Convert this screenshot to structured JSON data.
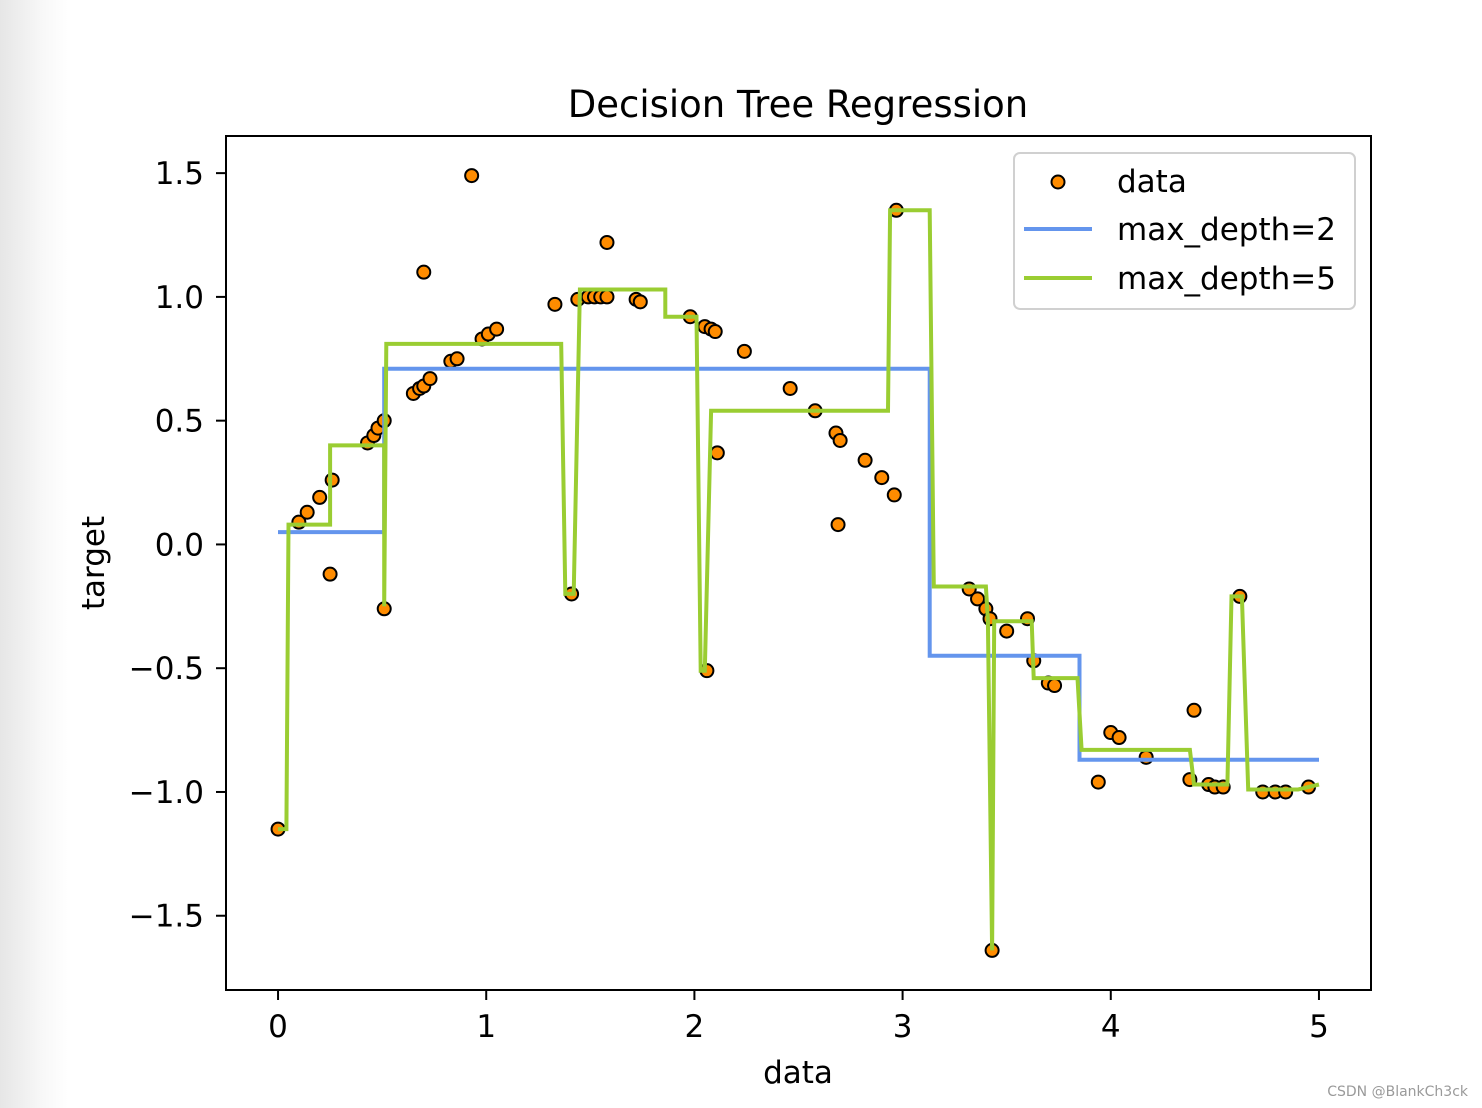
{
  "watermark": "CSDN @BlankCh3ck",
  "chart_data": {
    "type": "scatter",
    "title": "Decision Tree Regression",
    "xlabel": "data",
    "ylabel": "target",
    "xlim": [
      -0.25,
      5.25
    ],
    "ylim": [
      -1.8,
      1.65
    ],
    "xticks": [
      0,
      1,
      2,
      3,
      4,
      5
    ],
    "xtick_labels": [
      "0",
      "1",
      "2",
      "3",
      "4",
      "5"
    ],
    "yticks": [
      1.5,
      1.0,
      0.5,
      0.0,
      -0.5,
      -1.0,
      -1.5
    ],
    "ytick_labels": [
      "1.5",
      "1.0",
      "0.5",
      "0.0",
      "−0.5",
      "−1.0",
      "−1.5"
    ],
    "grid": false,
    "legend_position": "top-right",
    "legend": [
      {
        "label": "data",
        "kind": "marker",
        "color": "#ff8c00"
      },
      {
        "label": "max_depth=2",
        "kind": "line",
        "color": "#6495ed"
      },
      {
        "label": "max_depth=5",
        "kind": "line",
        "color": "#9acd32"
      }
    ],
    "scatter": {
      "name": "data",
      "color": "#ff8c00",
      "edgecolor": "#000000",
      "points": [
        [
          0.0,
          -1.15
        ],
        [
          0.1,
          0.09
        ],
        [
          0.14,
          0.13
        ],
        [
          0.2,
          0.19
        ],
        [
          0.25,
          -0.12
        ],
        [
          0.26,
          0.26
        ],
        [
          0.43,
          0.41
        ],
        [
          0.46,
          0.44
        ],
        [
          0.48,
          0.47
        ],
        [
          0.51,
          0.5
        ],
        [
          0.51,
          -0.26
        ],
        [
          0.65,
          0.61
        ],
        [
          0.68,
          0.63
        ],
        [
          0.7,
          0.64
        ],
        [
          0.7,
          1.1
        ],
        [
          0.73,
          0.67
        ],
        [
          0.83,
          0.74
        ],
        [
          0.86,
          0.75
        ],
        [
          0.93,
          1.49
        ],
        [
          0.98,
          0.83
        ],
        [
          1.01,
          0.85
        ],
        [
          1.05,
          0.87
        ],
        [
          1.33,
          0.97
        ],
        [
          1.41,
          -0.2
        ],
        [
          1.44,
          0.99
        ],
        [
          1.49,
          1.0
        ],
        [
          1.52,
          1.0
        ],
        [
          1.55,
          1.0
        ],
        [
          1.58,
          1.0
        ],
        [
          1.58,
          1.22
        ],
        [
          1.72,
          0.99
        ],
        [
          1.74,
          0.98
        ],
        [
          1.98,
          0.92
        ],
        [
          2.05,
          0.88
        ],
        [
          2.06,
          -0.51
        ],
        [
          2.08,
          0.87
        ],
        [
          2.1,
          0.86
        ],
        [
          2.11,
          0.37
        ],
        [
          2.24,
          0.78
        ],
        [
          2.46,
          0.63
        ],
        [
          2.58,
          0.54
        ],
        [
          2.68,
          0.45
        ],
        [
          2.7,
          0.42
        ],
        [
          2.69,
          0.08
        ],
        [
          2.82,
          0.34
        ],
        [
          2.9,
          0.27
        ],
        [
          2.96,
          0.2
        ],
        [
          2.97,
          1.35
        ],
        [
          3.32,
          -0.18
        ],
        [
          3.36,
          -0.22
        ],
        [
          3.4,
          -0.26
        ],
        [
          3.42,
          -0.3
        ],
        [
          3.43,
          -1.64
        ],
        [
          3.5,
          -0.35
        ],
        [
          3.6,
          -0.3
        ],
        [
          3.63,
          -0.47
        ],
        [
          3.7,
          -0.56
        ],
        [
          3.73,
          -0.57
        ],
        [
          3.94,
          -0.96
        ],
        [
          4.0,
          -0.76
        ],
        [
          4.04,
          -0.78
        ],
        [
          4.17,
          -0.86
        ],
        [
          4.38,
          -0.95
        ],
        [
          4.4,
          -0.67
        ],
        [
          4.47,
          -0.97
        ],
        [
          4.5,
          -0.98
        ],
        [
          4.54,
          -0.98
        ],
        [
          4.62,
          -0.21
        ],
        [
          4.73,
          -1.0
        ],
        [
          4.79,
          -1.0
        ],
        [
          4.84,
          -1.0
        ],
        [
          4.95,
          -0.98
        ]
      ]
    },
    "series": [
      {
        "name": "max_depth=2",
        "color": "#6495ed",
        "x": [
          0.0,
          0.51,
          0.51,
          3.13,
          3.13,
          3.85,
          3.85,
          5.0
        ],
        "y": [
          0.05,
          0.05,
          0.71,
          0.71,
          -0.45,
          -0.45,
          -0.87,
          -0.87
        ]
      },
      {
        "name": "max_depth=5",
        "color": "#9acd32",
        "x": [
          0.0,
          0.04,
          0.05,
          0.25,
          0.25,
          0.51,
          0.51,
          0.52,
          0.52,
          1.36,
          1.38,
          1.42,
          1.45,
          1.86,
          1.86,
          2.01,
          2.03,
          2.05,
          2.08,
          2.93,
          2.94,
          3.13,
          3.15,
          3.4,
          3.41,
          3.43,
          3.44,
          3.45,
          3.46,
          3.62,
          3.63,
          3.84,
          3.86,
          4.38,
          4.4,
          4.56,
          4.58,
          4.63,
          4.66,
          4.9,
          5.0
        ],
        "y": [
          -1.15,
          -1.15,
          0.08,
          0.08,
          0.4,
          0.4,
          -0.25,
          0.81,
          0.81,
          0.81,
          -0.2,
          -0.2,
          1.03,
          1.03,
          0.92,
          0.92,
          -0.51,
          -0.51,
          0.54,
          0.54,
          1.35,
          1.35,
          -0.17,
          -0.17,
          -0.31,
          -1.64,
          -0.31,
          -0.31,
          -0.31,
          -0.31,
          -0.54,
          -0.54,
          -0.83,
          -0.83,
          -0.97,
          -0.97,
          -0.21,
          -0.21,
          -0.99,
          -0.99,
          -0.97
        ]
      }
    ]
  }
}
